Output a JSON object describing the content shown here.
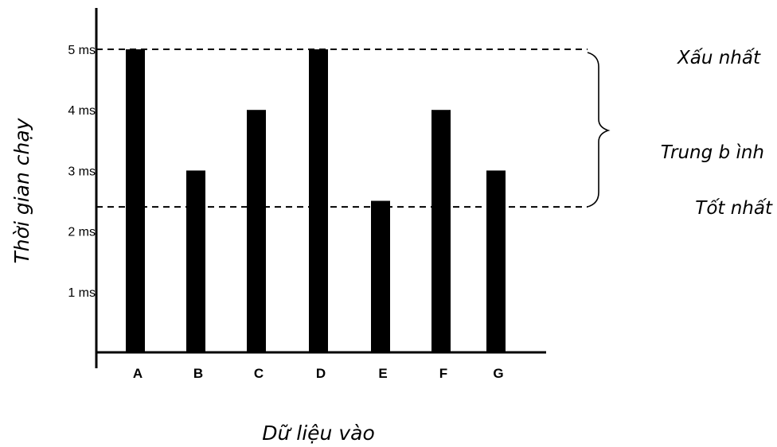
{
  "chart_data": {
    "type": "bar",
    "categories": [
      "A",
      "B",
      "C",
      "D",
      "E",
      "F",
      "G"
    ],
    "values": [
      5,
      3,
      4,
      5,
      2.5,
      4,
      3
    ],
    "ytick_labels": [
      "1 ms",
      "2 ms",
      "3 ms",
      "4 ms",
      "5 ms"
    ],
    "ytick_values": [
      1,
      2,
      3,
      4,
      5
    ],
    "ylim": [
      0,
      5.2
    ],
    "xlabel": "Dữ liệu vào",
    "ylabel": "Thời gian chạy",
    "grid": false,
    "bar_color": "#000000",
    "reference_lines": [
      {
        "value": 5,
        "label": "Xấu nhất",
        "style": "dashed"
      },
      {
        "value": 2.4,
        "label": "Tốt nhất",
        "style": "dashed"
      }
    ],
    "bracket_label": "Trung b ình"
  }
}
